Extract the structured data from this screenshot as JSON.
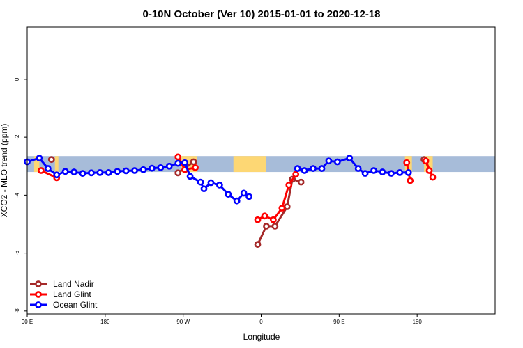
{
  "chart_data": {
    "type": "line",
    "title": "0-10N October (Ver 10)   2015-01-01 to 2020-12-18",
    "xlabel": "Longitude",
    "ylabel": "XCO2 - MLO trend (ppm)",
    "xlim": [
      -90,
      180
    ],
    "ylim": [
      -8.1,
      1.8
    ],
    "x_ticks": [
      {
        "value": -90,
        "label": "90 E"
      },
      {
        "value": -45,
        "label": "180"
      },
      {
        "value": 0,
        "label": "90 W"
      },
      {
        "value": 45,
        "label": "0"
      },
      {
        "value": 90,
        "label": "90 E"
      },
      {
        "value": 135,
        "label": "180"
      }
    ],
    "y_ticks": [
      {
        "value": 0,
        "label": "0"
      },
      {
        "value": -2,
        "label": "-2"
      },
      {
        "value": -4,
        "label": "-4"
      },
      {
        "value": -6,
        "label": "-6"
      },
      {
        "value": -8,
        "label": "-8"
      }
    ],
    "grid": false,
    "legend_position": "bottom-left",
    "band": {
      "y_range": [
        -3.2,
        -2.65
      ],
      "color": "#a7bcd9",
      "land_color": "#fdd774"
    },
    "land_segments": [
      [
        -86,
        -83
      ],
      [
        -74,
        -72
      ],
      [
        -1,
        8
      ],
      [
        29,
        48
      ],
      [
        128,
        132
      ],
      [
        139,
        144
      ]
    ],
    "series": [
      {
        "name": "Land Nadir",
        "color": "#a52a2a",
        "segments": [
          [
            [
              -76,
              -2.77
            ]
          ],
          [
            [
              -3,
              -3.23
            ],
            [
              6,
              -2.85
            ]
          ],
          [
            [
              43,
              -5.7
            ],
            [
              48,
              -5.07
            ],
            [
              53,
              -5.07
            ],
            [
              60,
              -4.4
            ],
            [
              63,
              -3.45
            ],
            [
              68,
              -3.55
            ]
          ],
          [
            [
              139,
              -2.77
            ]
          ]
        ]
      },
      {
        "name": "Land Glint",
        "color": "#ff0000",
        "segments": [
          [
            [
              -82,
              -3.15
            ],
            [
              -73,
              -3.4
            ]
          ],
          [
            [
              -3,
              -2.68
            ],
            [
              1,
              -3.12
            ],
            [
              7,
              -3.05
            ]
          ],
          [
            [
              43,
              -4.85
            ],
            [
              47,
              -4.72
            ],
            [
              52,
              -4.85
            ],
            [
              57,
              -4.45
            ],
            [
              61,
              -3.65
            ],
            [
              65,
              -3.28
            ]
          ],
          [
            [
              129,
              -2.88
            ],
            [
              131,
              -3.5
            ]
          ],
          [
            [
              142,
              -3.15
            ],
            [
              140,
              -2.82
            ],
            [
              144,
              -3.38
            ]
          ]
        ]
      },
      {
        "name": "Ocean Glint",
        "color": "#0000ff",
        "segments": [
          [
            [
              -90,
              -2.85
            ],
            [
              -83,
              -2.72
            ],
            [
              -78,
              -3.08
            ],
            [
              -73,
              -3.3
            ],
            [
              -68,
              -3.18
            ],
            [
              -63,
              -3.2
            ],
            [
              -58,
              -3.25
            ],
            [
              -53,
              -3.23
            ],
            [
              -48,
              -3.22
            ],
            [
              -43,
              -3.22
            ],
            [
              -38,
              -3.18
            ],
            [
              -33,
              -3.16
            ],
            [
              -28,
              -3.15
            ],
            [
              -23,
              -3.12
            ],
            [
              -18,
              -3.07
            ],
            [
              -13,
              -3.05
            ],
            [
              -8,
              -3.0
            ],
            [
              -3,
              -2.9
            ],
            [
              1,
              -2.88
            ],
            [
              4,
              -3.35
            ],
            [
              10,
              -3.55
            ],
            [
              12,
              -3.78
            ],
            [
              16,
              -3.57
            ],
            [
              21,
              -3.65
            ],
            [
              26,
              -3.97
            ],
            [
              31,
              -4.2
            ],
            [
              35,
              -3.93
            ],
            [
              38,
              -4.05
            ]
          ],
          [
            [
              66,
              -3.08
            ],
            [
              70,
              -3.15
            ],
            [
              75,
              -3.08
            ],
            [
              80,
              -3.08
            ],
            [
              84,
              -2.82
            ],
            [
              89,
              -2.85
            ],
            [
              96,
              -2.72
            ],
            [
              101,
              -3.08
            ],
            [
              105,
              -3.25
            ],
            [
              110,
              -3.15
            ],
            [
              115,
              -3.2
            ],
            [
              120,
              -3.25
            ],
            [
              125,
              -3.22
            ],
            [
              130,
              -3.22
            ]
          ]
        ]
      }
    ]
  }
}
